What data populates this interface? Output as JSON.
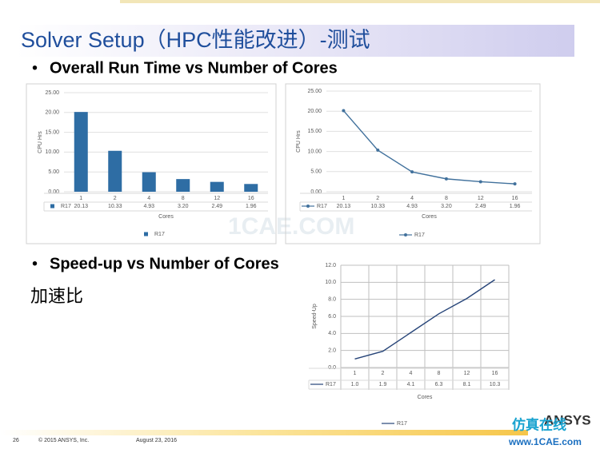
{
  "slide": {
    "title": "Solver Setup（HPC性能改进）-测试",
    "bullets": [
      "Overall Run Time vs Number of Cores",
      "Speed-up vs Number of Cores"
    ],
    "note": "加速比",
    "footer": {
      "page": "26",
      "copyright": "© 2015 ANSYS, Inc.",
      "date": "August 23, 2016",
      "logo": "ANSYS"
    },
    "watermark": [
      "1CAE.COM",
      "仿真在线",
      "www.1CAE.com"
    ]
  },
  "chart_data": [
    {
      "type": "bar",
      "categories": [
        "1",
        "2",
        "4",
        "8",
        "12",
        "16"
      ],
      "series": [
        {
          "name": "R17",
          "color": "#2e6da4",
          "values": [
            20.13,
            10.33,
            4.93,
            3.2,
            2.49,
            1.96
          ],
          "value_labels": [
            "20.13",
            "10.33",
            "4.93",
            "3.20",
            "2.49",
            "1.96"
          ]
        }
      ],
      "ylim": [
        0,
        25
      ],
      "yticks": [
        {
          "value": 0,
          "label": "0.00"
        },
        {
          "value": 5,
          "label": "5.00"
        },
        {
          "value": 10,
          "label": "10.00"
        },
        {
          "value": 15,
          "label": "15.00"
        },
        {
          "value": 20,
          "label": "20.00"
        },
        {
          "value": 25,
          "label": "25.00"
        }
      ],
      "ylabel": "CPU Hrs",
      "xlabel": "Cores",
      "grid": true
    },
    {
      "type": "line",
      "categories": [
        "1",
        "2",
        "4",
        "8",
        "12",
        "16"
      ],
      "series": [
        {
          "name": "R17",
          "color": "#41719c",
          "values": [
            20.13,
            10.33,
            4.93,
            3.2,
            2.49,
            1.96
          ],
          "value_labels": [
            "20.13",
            "10.33",
            "4.93",
            "3.20",
            "2.49",
            "1.96"
          ]
        }
      ],
      "ylim": [
        0,
        25
      ],
      "yticks": [
        {
          "value": 0,
          "label": "0.00"
        },
        {
          "value": 5,
          "label": "5.00"
        },
        {
          "value": 10,
          "label": "10.00"
        },
        {
          "value": 15,
          "label": "15.00"
        },
        {
          "value": 20,
          "label": "20.00"
        },
        {
          "value": 25,
          "label": "25.00"
        }
      ],
      "ylabel": "CPU Hrs",
      "xlabel": "Cores",
      "grid": true,
      "markers": true
    },
    {
      "type": "line",
      "categories": [
        "1",
        "2",
        "4",
        "8",
        "12",
        "16"
      ],
      "series": [
        {
          "name": "R17",
          "color": "#264478",
          "values": [
            1.0,
            1.9,
            4.1,
            6.3,
            8.1,
            10.3
          ],
          "value_labels": [
            "1.0",
            "1.9",
            "4.1",
            "6.3",
            "8.1",
            "10.3"
          ]
        }
      ],
      "ylim": [
        0,
        12
      ],
      "yticks": [
        {
          "value": 0,
          "label": "0.0"
        },
        {
          "value": 2,
          "label": "2.0"
        },
        {
          "value": 4,
          "label": "4.0"
        },
        {
          "value": 6,
          "label": "6.0"
        },
        {
          "value": 8,
          "label": "8.0"
        },
        {
          "value": 10,
          "label": "10.0"
        },
        {
          "value": 12,
          "label": "12.0"
        }
      ],
      "ylabel": "Speed-Up",
      "xlabel": "Cores",
      "grid": true,
      "markers": false
    }
  ]
}
